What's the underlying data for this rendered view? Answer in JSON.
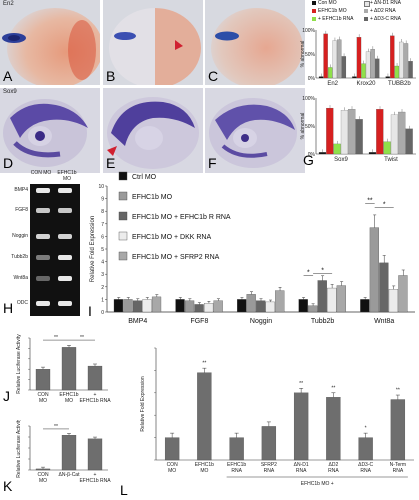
{
  "photos": {
    "top_label": "En2",
    "bottom_label": "Sox9"
  },
  "panel_letters": {
    "A": "A",
    "B": "B",
    "C": "C",
    "D": "D",
    "E": "E",
    "F": "F",
    "G": "G",
    "H": "H",
    "I": "I",
    "J": "J",
    "K": "K",
    "L": "L"
  },
  "colors": {
    "black": "#111111",
    "red": "#d62020",
    "green": "#8fe04a",
    "gray": "#666666",
    "light": "#e6e6e6",
    "mid": "#aaaaaa",
    "stripe": "#888888"
  },
  "legend_top": {
    "items": [
      "Con MO",
      "EFHC1b MO",
      "+ EFHC1b RNA",
      "+ ΔN-D1 RNA",
      "+ ΔD2 RNA",
      "+ ΔD3-C RNA"
    ]
  },
  "gel": {
    "headers": [
      "CON MO",
      "EFHC1b MO"
    ],
    "rows": [
      "BMP4",
      "FGF8",
      "Noggin",
      "Tubb2b",
      "Wnt8a",
      "ODC"
    ]
  },
  "chart_data": [
    {
      "id": "G-top",
      "type": "bar",
      "categories": [
        "En2",
        "Krox20",
        "TUBB2b"
      ],
      "ylabel": "% abnormal",
      "ytick_labels": [
        "100%",
        "50%",
        "0%"
      ],
      "ylim": [
        0,
        100
      ],
      "series": [
        {
          "values": [
            3,
            3,
            3
          ]
        },
        {
          "values": [
            92,
            85,
            88
          ]
        },
        {
          "values": [
            22,
            30,
            25
          ]
        },
        {
          "values": [
            78,
            55,
            75
          ]
        },
        {
          "values": [
            80,
            60,
            72
          ]
        },
        {
          "values": [
            45,
            40,
            35
          ]
        }
      ]
    },
    {
      "id": "G-bottom",
      "type": "bar",
      "categories": [
        "Sox9",
        "Twist"
      ],
      "ylabel": "% abnormal",
      "ytick_labels": [
        "100%",
        "50%",
        "0%"
      ],
      "ylim": [
        0,
        100
      ],
      "series": [
        {
          "values": [
            3,
            3
          ]
        },
        {
          "values": [
            82,
            80
          ]
        },
        {
          "values": [
            18,
            22
          ]
        },
        {
          "values": [
            78,
            70
          ]
        },
        {
          "values": [
            80,
            75
          ]
        },
        {
          "values": [
            62,
            45
          ]
        }
      ]
    },
    {
      "id": "I",
      "type": "bar",
      "categories": [
        "BMP4",
        "FGF8",
        "Noggin",
        "Tubb2b",
        "Wnt8a"
      ],
      "ylabel": "Relative Fold Expression",
      "yticks": [
        0,
        1,
        2,
        3,
        4,
        5,
        6,
        7,
        8,
        9,
        10
      ],
      "ylim": [
        0,
        10
      ],
      "legend": [
        "Ctrl MO",
        "EFHC1b MO",
        "EFHC1b MO + EFHC1b R RNA",
        "EFHC1b MO + DKK RNA",
        "EFHC1b MO + SFRP2 RNA"
      ],
      "series": [
        {
          "name": "Ctrl MO",
          "values": [
            1.0,
            1.0,
            1.0,
            1.0,
            1.0
          ]
        },
        {
          "name": "EFHC1b MO",
          "values": [
            1.0,
            0.9,
            1.4,
            0.5,
            6.7
          ]
        },
        {
          "name": "EFHC1b MO + EFHC1b R RNA",
          "values": [
            0.9,
            0.6,
            0.9,
            2.5,
            3.9
          ]
        },
        {
          "name": "EFHC1b MO + DKK RNA",
          "values": [
            1.0,
            0.7,
            0.8,
            1.9,
            1.8
          ]
        },
        {
          "name": "EFHC1b MO + SFRP2 RNA",
          "values": [
            1.2,
            0.9,
            1.7,
            2.1,
            2.9
          ]
        }
      ],
      "annotations": [
        "*",
        "*",
        "**",
        "*"
      ]
    },
    {
      "id": "J",
      "type": "bar",
      "categories": [
        "CON MO",
        "EFHC1b MO",
        "+ EFHC1b RNA"
      ],
      "ylabel": "Relative Luciferase Activity",
      "values": [
        1.0,
        2.05,
        1.15
      ],
      "ylim": [
        0,
        2.5
      ],
      "annotations": [
        "**",
        "**"
      ]
    },
    {
      "id": "K",
      "type": "bar",
      "categories": [
        "CON MO",
        "ΔN-β-Cat",
        "+ EFHC1b RNA"
      ],
      "ylabel": "Relative Luciferase Activity",
      "values": [
        0.3,
        9.5,
        8.5
      ],
      "ylim": [
        0,
        12
      ],
      "annotations": [
        "**"
      ]
    },
    {
      "id": "L",
      "type": "bar",
      "categories": [
        "CON MO",
        "EFHC1b MO",
        "EFHC1b RNA",
        "SFRP2 RNA",
        "ΔN-D1 RNA",
        "ΔD2 RNA",
        "ΔD3-C RNA",
        "N-Term RNA"
      ],
      "group_label": "EFHC1b MO +",
      "ylabel": "Relative Fold Expression",
      "values": [
        1.0,
        3.9,
        1.0,
        1.5,
        3.0,
        2.8,
        1.0,
        2.7
      ],
      "ylim": [
        0,
        5
      ],
      "annotations": [
        "**",
        "**",
        "**",
        "*",
        "**"
      ]
    }
  ]
}
